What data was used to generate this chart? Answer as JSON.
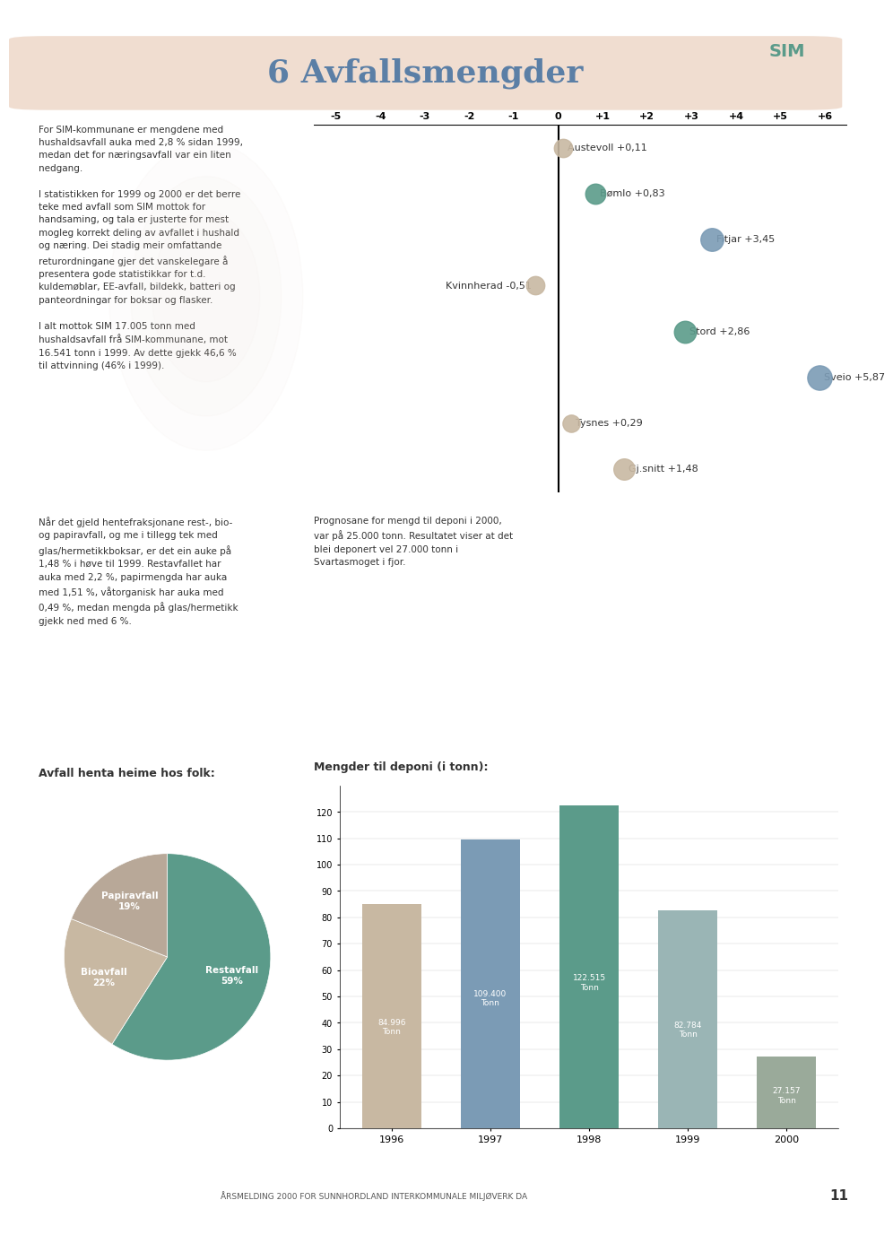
{
  "title": "6 Avfallsmengder",
  "title_bg_color": "#f0ddd0",
  "title_text_color": "#5b7fa6",
  "page_bg_color": "#ffffff",
  "body_text_color": "#333333",
  "left_text_col1": [
    "For SIM-kommunane er mengdene med",
    "hushaldsavfall auka med 2,8 % sidan 1999,",
    "medan det for næringsavfall var ein liten",
    "nedgang.",
    "",
    "I statistikken for 1999 og 2000 er det berre",
    "teke med avfall som SIM mottok for",
    "handsaming, og tala er justerte for mest",
    "mogleg korrekt deling av avfallet i hushald",
    "og næring. Dei stadig meir omfattande",
    "returordningane gjer det vanskelegare å",
    "presentera gode statistikkar for t.d.",
    "kuldemøblar, EE-avfall, bildekk, batteri og",
    "panteordningar for boksar og flasker.",
    "",
    "I alt mottok SIM 17.005 tonn med",
    "hushaldsavfall frå SIM-kommunane, mot",
    "16.541 tonn i 1999. Av dette gjekk 46,6 %",
    "til attvinning (46% i 1999)."
  ],
  "dot_chart": {
    "axis_labels": [
      "-5",
      "-4",
      "-3",
      "-2",
      "-1",
      "0",
      "+1",
      "+2",
      "+3",
      "+4",
      "+5",
      "+6"
    ],
    "axis_values": [
      -5,
      -4,
      -3,
      -2,
      -1,
      0,
      1,
      2,
      3,
      4,
      5,
      6
    ],
    "items": [
      {
        "name": "Austevoll +0,11",
        "value": 0.11,
        "color": "#c8b8a2",
        "size": 18
      },
      {
        "name": "Bømlo +0,83",
        "value": 0.83,
        "color": "#5b9b8a",
        "size": 22
      },
      {
        "name": "Fitjar +3,45",
        "value": 3.45,
        "color": "#7b9bb5",
        "size": 28
      },
      {
        "name": "Kvinnherad -0,51",
        "value": -0.51,
        "color": "#c8b8a2",
        "size": 18
      },
      {
        "name": "Stord +2,86",
        "value": 2.86,
        "color": "#5b9b8a",
        "size": 26
      },
      {
        "name": "Sveio +5,87",
        "value": 5.87,
        "color": "#7b9bb5",
        "size": 32
      },
      {
        "name": "Tysnes +0,29",
        "value": 0.29,
        "color": "#c8b8a2",
        "size": 16
      },
      {
        "name": "Gj.snitt +1,48",
        "value": 1.48,
        "color": "#c8b8a2",
        "size": 24
      }
    ]
  },
  "bottom_left_text": [
    "Når det gjeld hentefraksjonane rest-, bio-",
    "og papiravfall, og me i tillegg tek med",
    "glas/hermetikkboksar, er det ein auke på",
    "1,48 % i høve til 1999. Restavfallet har",
    "auka med 2,2 %, papirmengda har auka",
    "med 1,51 %, våtorganisk har auka med",
    "0,49 %, medan mengda på glas/hermetikk",
    "gjekk ned med 6 %."
  ],
  "bottom_right_text": [
    "Prognosane for mengd til deponi i 2000,",
    "var på 25.000 tonn. Resultatet viser at det",
    "blei deponert vel 27.000 tonn i",
    "Svartasmoget i fjor."
  ],
  "deponi_label": "Mengder til deponi (i tonn):",
  "pie_label": "Avfall henta heime hos folk:",
  "pie_slices": [
    {
      "label": "Restavfall\n59%",
      "value": 59,
      "color": "#5b9b8a"
    },
    {
      "label": "Bioavfall\n22%",
      "value": 22,
      "color": "#c8b8a2"
    },
    {
      "label": "Papiravfall\n19%",
      "value": 19,
      "color": "#b8a898"
    }
  ],
  "bar_chart": {
    "years": [
      "1996",
      "1997",
      "1998",
      "1999",
      "2000"
    ],
    "values": [
      84996,
      109400,
      122515,
      82784,
      27157
    ],
    "labels": [
      "84.996\nTonn",
      "109.400\nTonn",
      "122.515\nTonn",
      "82.784\nTonn",
      "27.157\nTonn"
    ],
    "colors": [
      "#c8b8a2",
      "#7b9bb5",
      "#5b9b8a",
      "#9ab5b5",
      "#9aaa9a"
    ],
    "ylim": [
      0,
      130
    ],
    "yticks": [
      0,
      10,
      20,
      30,
      40,
      50,
      60,
      70,
      80,
      90,
      100,
      110,
      120
    ]
  },
  "footer_text": "ÅRSMELDING 2000 FOR SUNNHORDLAND INTERKOMMUNALE MILJØVERK DA",
  "page_number": "11",
  "watermark_color": "#e8d8cc"
}
